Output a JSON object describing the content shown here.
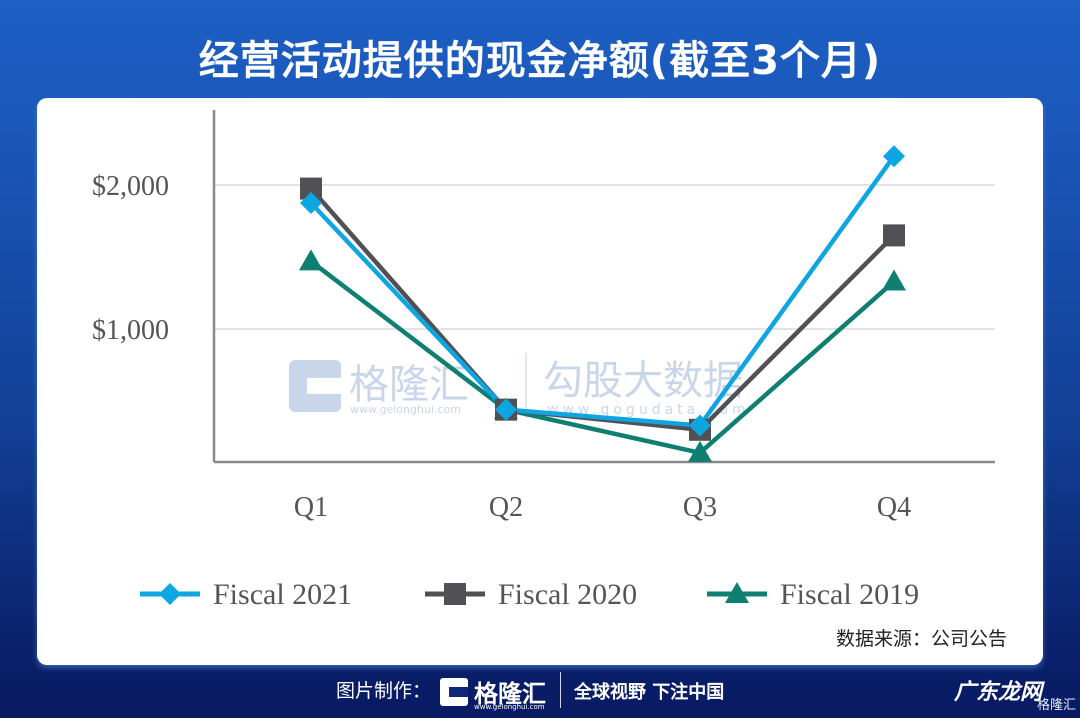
{
  "title": "经营活动提供的现金净额(截至3个月)",
  "source": "数据来源：公司公告",
  "watermark": {
    "left_brand": "格隆汇",
    "left_url": "www.gelonghui.com",
    "right_brand": "勾股大数据",
    "right_url": "www.gogudata.com"
  },
  "footer": {
    "made_by": "图片制作：",
    "brand": "格隆汇",
    "brand_url": "www.gelonghui.com",
    "slogan": "全球视野 下注中国",
    "corner_mark": "广东龙网",
    "corner_sub": "格隆汇"
  },
  "colors": {
    "fiscal_2021": "#0ea5e3",
    "fiscal_2020": "#505055",
    "fiscal_2019": "#0f7f72",
    "grid": "#e3e3e3",
    "axis": "#8a8a8a"
  },
  "chart_data": {
    "type": "line",
    "title": "经营活动提供的现金净额(截至3个月)",
    "categories": [
      "Q1",
      "Q2",
      "Q3",
      "Q4"
    ],
    "series": [
      {
        "name": "Fiscal 2021",
        "marker": "diamond",
        "values": [
          1875,
          440,
          330,
          2200
        ]
      },
      {
        "name": "Fiscal 2020",
        "marker": "square",
        "values": [
          1975,
          440,
          300,
          1650
        ]
      },
      {
        "name": "Fiscal 2019",
        "marker": "triangle",
        "values": [
          1470,
          440,
          140,
          1330
        ]
      }
    ],
    "y_ticks": [
      "$1,000",
      "$2,000"
    ],
    "y_tick_values": [
      1000,
      2000
    ],
    "xlabel": "",
    "ylabel": "",
    "ylim": [
      75,
      2600
    ],
    "grid": true,
    "legend_position": "bottom"
  }
}
